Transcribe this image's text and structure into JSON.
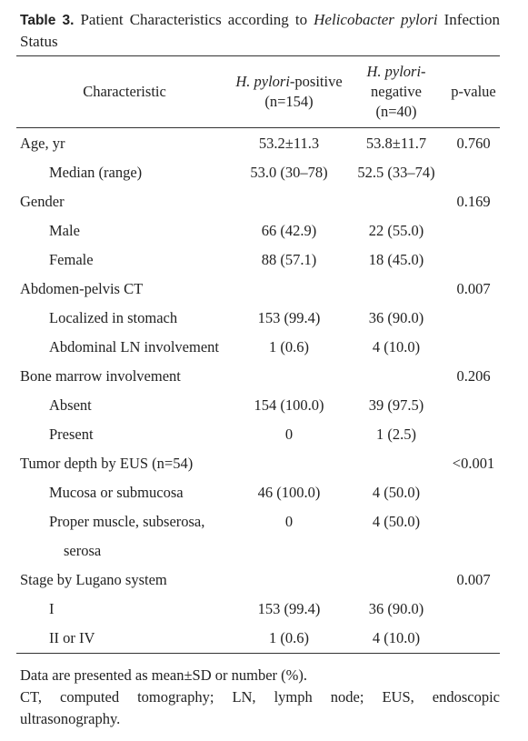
{
  "title": {
    "label": "Table 3.",
    "text": "Patient Characteristics according to",
    "italic": "Helicobacter pylori",
    "rest": "Infection Status"
  },
  "header": {
    "characteristic": "Characteristic",
    "positive": {
      "name": "H. pylori",
      "status": "-positive",
      "n": "(n=154)"
    },
    "negative": {
      "name": "H. pylori",
      "status": "-negative",
      "n": "(n=40)"
    },
    "p_value": "p-value"
  },
  "groups": [
    {
      "label": "Age, yr",
      "positive": "53.2±11.3",
      "negative": "53.8±11.7",
      "p_value": "0.760",
      "items": [
        {
          "label": "Median (range)",
          "positive": "53.0 (30–78)",
          "negative": "52.5 (33–74)"
        }
      ]
    },
    {
      "label": "Gender",
      "p_value": "0.169",
      "items": [
        {
          "label": "Male",
          "positive": "66 (42.9)",
          "negative": "22 (55.0)"
        },
        {
          "label": "Female",
          "positive": "88 (57.1)",
          "negative": "18 (45.0)"
        }
      ]
    },
    {
      "label": "Abdomen-pelvis CT",
      "p_value": "0.007",
      "items": [
        {
          "label": "Localized in stomach",
          "positive": "153 (99.4)",
          "negative": "36 (90.0)"
        },
        {
          "label": "Abdominal LN involvement",
          "positive": "1 (0.6)",
          "negative": "4 (10.0)"
        }
      ]
    },
    {
      "label": "Bone marrow involvement",
      "p_value": "0.206",
      "items": [
        {
          "label": "Absent",
          "positive": "154 (100.0)",
          "negative": "39 (97.5)"
        },
        {
          "label": "Present",
          "positive": "0",
          "negative": "1 (2.5)"
        }
      ]
    },
    {
      "label": "Tumor depth by EUS (n=54)",
      "p_value": "<0.001",
      "items": [
        {
          "label": "Mucosa or submucosa",
          "positive": "46 (100.0)",
          "negative": "4 (50.0)"
        },
        {
          "label": "Proper muscle, subserosa, serosa",
          "positive": "0",
          "negative": "4 (50.0)"
        }
      ]
    },
    {
      "label": "Stage by Lugano system",
      "p_value": "0.007",
      "items": [
        {
          "label": "I",
          "positive": "153 (99.4)",
          "negative": "36 (90.0)"
        },
        {
          "label": "II or IV",
          "positive": "1 (0.6)",
          "negative": "4 (10.0)"
        }
      ]
    }
  ],
  "footnotes": [
    "Data are presented as mean±SD or number (%).",
    "CT, computed tomography; LN, lymph node; EUS, endoscopic ultrasonography."
  ]
}
